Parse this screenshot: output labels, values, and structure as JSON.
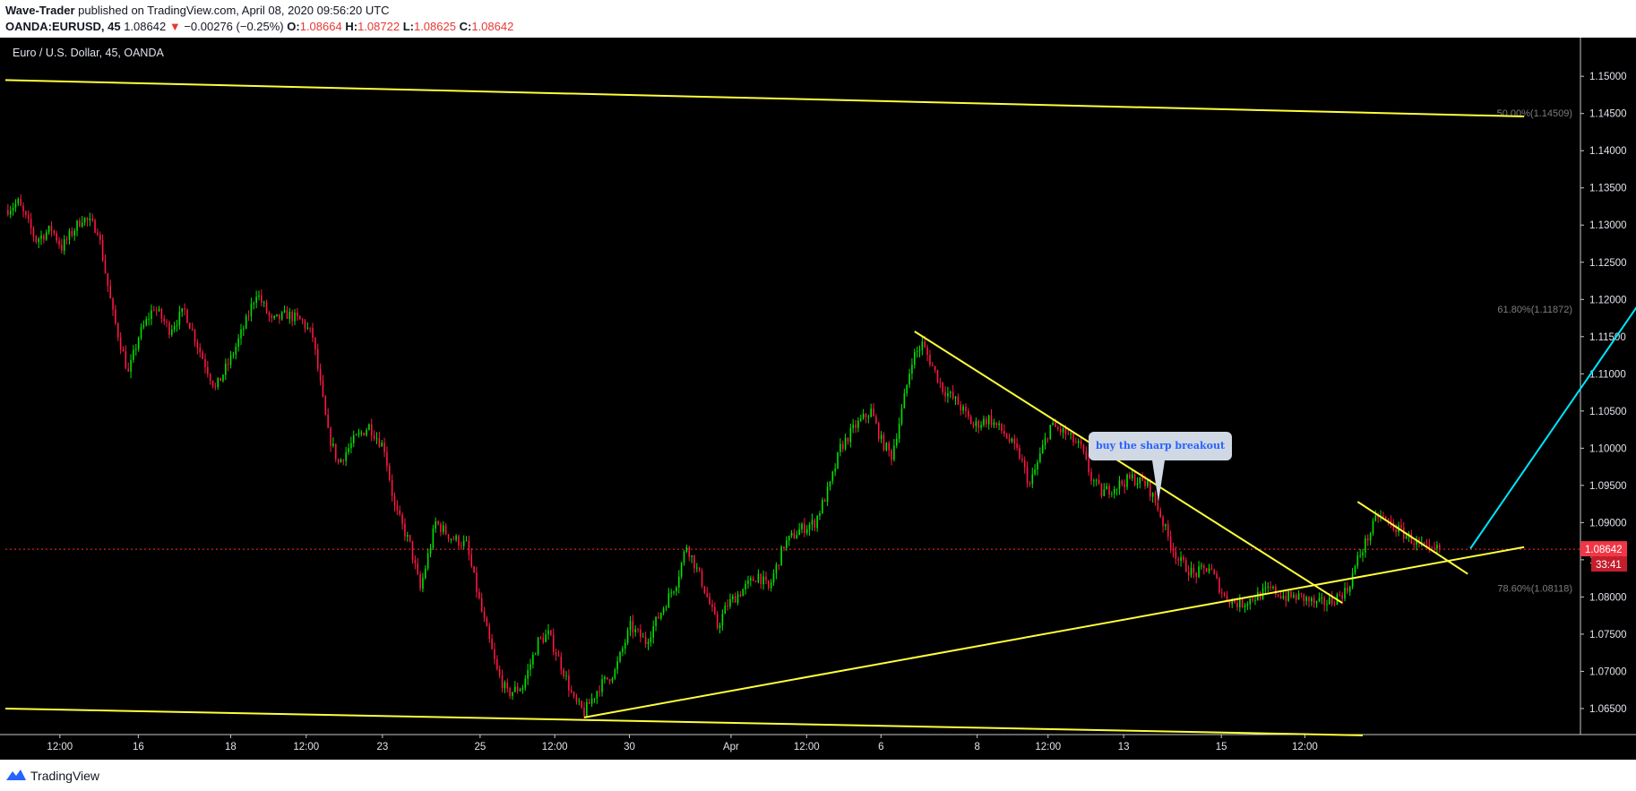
{
  "header": {
    "author": "Wave-Trader",
    "published_text": " published on TradingView.com, April 08, 2020 09:56:20 UTC",
    "symbol": "OANDA:EURUSD, 45",
    "price": "1.08642",
    "change_arrow": "▼",
    "change": "−0.00276 (−0.25%)",
    "o_label": "O:",
    "o_value": "1.08664",
    "h_label": "H:",
    "h_value": "1.08722",
    "l_label": "L:",
    "l_value": "1.08625",
    "c_label": "C:",
    "c_value": "1.08642"
  },
  "chart_title": "Euro / U.S. Dollar, 45, OANDA",
  "callout": {
    "text": "buy the sharp breakout"
  },
  "footer": {
    "brand": "TradingView"
  },
  "colors": {
    "up": "#00e500",
    "down": "#ff1744",
    "trendline": "#ffff3b",
    "arrow": "#00e5ff",
    "price_line": "#ff2a2a",
    "fib_label": "#7c7c7c"
  },
  "chart_data": {
    "type": "candlestick",
    "ylim": [
      1.0615,
      1.1552
    ],
    "y_ticks": [
      "1.15000",
      "1.14500",
      "1.14000",
      "1.13500",
      "1.13000",
      "1.12500",
      "1.12000",
      "1.11500",
      "1.11000",
      "1.10500",
      "1.10000",
      "1.09500",
      "1.09000",
      "1.08500",
      "1.08000",
      "1.07500",
      "1.07000",
      "1.06500"
    ],
    "x_tick_labels": [
      "12:00",
      "16",
      "18",
      "12:00",
      "23",
      "25",
      "12:00",
      "30",
      "Apr",
      "12:00",
      "6",
      "8",
      "12:00",
      "13",
      "15",
      "12:00"
    ],
    "close_path": [
      [
        0,
        1.132
      ],
      [
        5,
        1.133
      ],
      [
        12,
        1.128
      ],
      [
        18,
        1.1295
      ],
      [
        22,
        1.127
      ],
      [
        30,
        1.131
      ],
      [
        36,
        1.1295
      ],
      [
        42,
        1.118
      ],
      [
        48,
        1.11
      ],
      [
        52,
        1.115
      ],
      [
        58,
        1.119
      ],
      [
        64,
        1.116
      ],
      [
        70,
        1.1185
      ],
      [
        76,
        1.113
      ],
      [
        82,
        1.108
      ],
      [
        88,
        1.112
      ],
      [
        94,
        1.117
      ],
      [
        98,
        1.121
      ],
      [
        104,
        1.117
      ],
      [
        110,
        1.118
      ],
      [
        116,
        1.117
      ],
      [
        120,
        1.115
      ],
      [
        126,
        1.102
      ],
      [
        130,
        1.098
      ],
      [
        136,
        1.101
      ],
      [
        142,
        1.103
      ],
      [
        148,
        1.1
      ],
      [
        152,
        1.092
      ],
      [
        158,
        1.087
      ],
      [
        162,
        1.081
      ],
      [
        168,
        1.09
      ],
      [
        174,
        1.088
      ],
      [
        180,
        1.087
      ],
      [
        186,
        1.078
      ],
      [
        192,
        1.07
      ],
      [
        196,
        1.067
      ],
      [
        202,
        1.068
      ],
      [
        208,
        1.074
      ],
      [
        212,
        1.075
      ],
      [
        218,
        1.07
      ],
      [
        222,
        1.066
      ],
      [
        226,
        1.0645
      ],
      [
        232,
        1.068
      ],
      [
        238,
        1.07
      ],
      [
        244,
        1.076
      ],
      [
        250,
        1.074
      ],
      [
        256,
        1.078
      ],
      [
        262,
        1.082
      ],
      [
        266,
        1.087
      ],
      [
        272,
        1.082
      ],
      [
        278,
        1.076
      ],
      [
        282,
        1.079
      ],
      [
        288,
        1.081
      ],
      [
        294,
        1.083
      ],
      [
        298,
        1.081
      ],
      [
        304,
        1.087
      ],
      [
        310,
        1.089
      ],
      [
        316,
        1.09
      ],
      [
        322,
        1.095
      ],
      [
        326,
        1.1
      ],
      [
        332,
        1.103
      ],
      [
        338,
        1.105
      ],
      [
        342,
        1.101
      ],
      [
        346,
        1.099
      ],
      [
        350,
        1.105
      ],
      [
        354,
        1.112
      ],
      [
        358,
        1.114
      ],
      [
        362,
        1.111
      ],
      [
        366,
        1.108
      ],
      [
        372,
        1.106
      ],
      [
        378,
        1.103
      ],
      [
        384,
        1.104
      ],
      [
        390,
        1.102
      ],
      [
        396,
        1.099
      ],
      [
        400,
        1.095
      ],
      [
        404,
        1.099
      ],
      [
        408,
        1.103
      ],
      [
        414,
        1.102
      ],
      [
        420,
        1.1
      ],
      [
        424,
        1.096
      ],
      [
        428,
        1.094
      ],
      [
        434,
        1.095
      ],
      [
        440,
        1.096
      ],
      [
        446,
        1.095
      ],
      [
        450,
        1.092
      ],
      [
        454,
        1.088
      ],
      [
        458,
        1.085
      ],
      [
        464,
        1.083
      ],
      [
        470,
        1.084
      ],
      [
        476,
        1.08
      ],
      [
        482,
        1.079
      ],
      [
        488,
        1.08
      ],
      [
        494,
        1.081
      ],
      [
        500,
        1.08
      ],
      [
        506,
        1.08
      ],
      [
        512,
        1.079
      ],
      [
        518,
        1.0795
      ],
      [
        524,
        1.081
      ],
      [
        528,
        1.085
      ],
      [
        532,
        1.088
      ],
      [
        536,
        1.091
      ],
      [
        540,
        1.09
      ],
      [
        544,
        1.089
      ],
      [
        548,
        1.088
      ],
      [
        552,
        1.087
      ],
      [
        556,
        1.086
      ],
      [
        560,
        1.0865
      ]
    ],
    "trendlines": [
      {
        "name": "upper-channel",
        "p1": [
          0,
          1.1495
        ],
        "p2": [
          593,
          1.1446
        ]
      },
      {
        "name": "lower-channel",
        "p1": [
          0,
          1.065
        ],
        "p2": [
          530,
          1.0614
        ]
      },
      {
        "name": "rising-support",
        "p1": [
          226,
          1.0638
        ],
        "p2": [
          593,
          1.0867
        ]
      },
      {
        "name": "falling-resistance-1",
        "p1": [
          355,
          1.1157
        ],
        "p2": [
          522,
          1.0792
        ]
      },
      {
        "name": "falling-resistance-2",
        "p1": [
          528,
          1.0928
        ],
        "p2": [
          571,
          1.0831
        ]
      }
    ],
    "projection_arrow": {
      "from": [
        572,
        1.0865
      ],
      "to": [
        686,
        1.1435
      ]
    },
    "fib_levels": [
      {
        "label": "50.00%(1.14509)",
        "value": 1.14509
      },
      {
        "label": "61.80%(1.11872)",
        "value": 1.11872
      },
      {
        "label": "78.60%(1.08118)",
        "value": 1.08118
      }
    ],
    "last_price": {
      "value": 1.08642,
      "label": "1.08642",
      "countdown": "33:41"
    }
  }
}
